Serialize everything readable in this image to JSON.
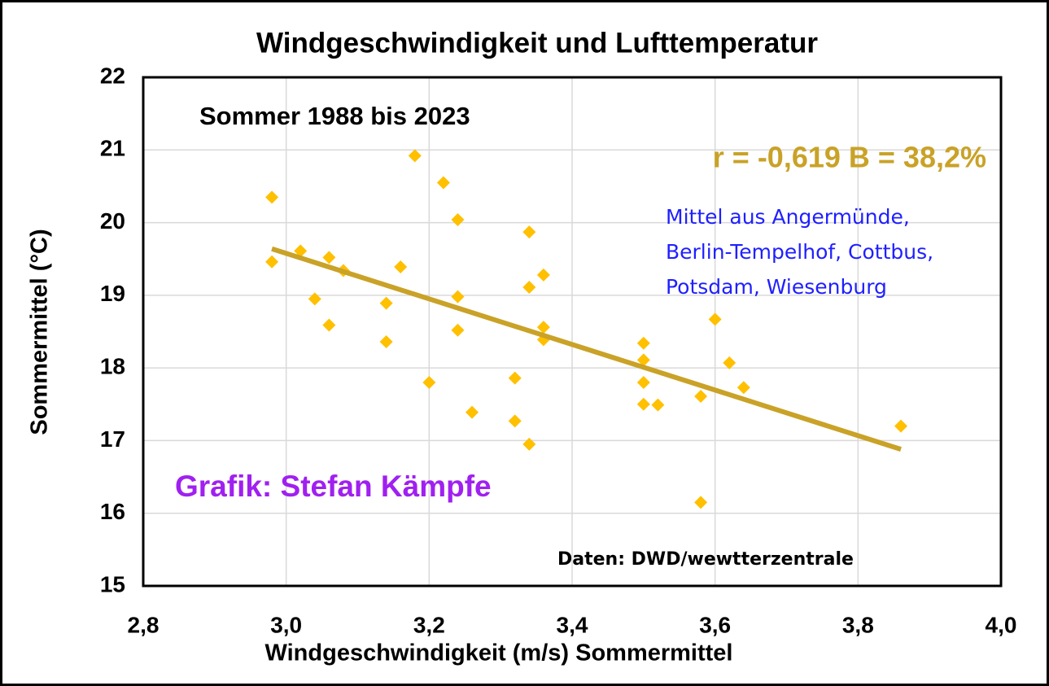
{
  "chart_data": {
    "type": "scatter",
    "title": "Windgeschwindigkeit und Lufttemperatur",
    "subtitle": "Sommer 1988 bis 2023",
    "x_label": "Windgeschwindigkeit (m/s) Sommermittel",
    "y_label": "Sommermittel (°C)",
    "annotations": {
      "stats": "r = -0,619 B = 38,2%",
      "stations": [
        "Mittel aus Angermünde,",
        "Berlin-Tempelhof, Cottbus,",
        "Potsdam, Wiesenburg"
      ],
      "credit": "Grafik: Stefan Kämpfe",
      "source": "Daten: DWD/wewtterzentrale"
    },
    "series": [
      {
        "color": "#ffc000",
        "x": [
          2.98,
          2.98,
          3.02,
          3.04,
          3.06,
          3.06,
          3.08,
          3.14,
          3.14,
          3.16,
          3.18,
          3.2,
          3.22,
          3.24,
          3.24,
          3.24,
          3.26,
          3.32,
          3.32,
          3.34,
          3.34,
          3.34,
          3.36,
          3.36,
          3.36,
          3.5,
          3.5,
          3.5,
          3.5,
          3.52,
          3.58,
          3.58,
          3.6,
          3.62,
          3.64,
          3.86
        ],
        "values": [
          20.35,
          19.46,
          19.61,
          18.95,
          19.52,
          18.59,
          19.34,
          18.89,
          18.36,
          19.39,
          20.92,
          17.8,
          20.55,
          20.04,
          18.98,
          18.52,
          17.39,
          17.86,
          17.27,
          19.87,
          19.11,
          16.95,
          19.28,
          18.56,
          18.39,
          18.34,
          18.11,
          17.8,
          17.5,
          17.49,
          17.61,
          16.15,
          18.67,
          18.07,
          17.73,
          17.2
        ]
      }
    ],
    "trendline": {
      "color": "#c9a227",
      "x": [
        2.98,
        3.86
      ],
      "values": [
        19.64,
        16.88
      ]
    },
    "xlim": [
      2.8,
      4.0
    ],
    "xticks": [
      {
        "value": 2.8,
        "label": "2,8"
      },
      {
        "value": 3.0,
        "label": "3,0"
      },
      {
        "value": 3.2,
        "label": "3,2"
      },
      {
        "value": 3.4,
        "label": "3,4"
      },
      {
        "value": 3.6,
        "label": "3,6"
      },
      {
        "value": 3.8,
        "label": "3,8"
      },
      {
        "value": 4.0,
        "label": "4,0"
      }
    ],
    "ylim": [
      15,
      22
    ],
    "yticks": [
      15,
      16,
      17,
      18,
      19,
      20,
      21,
      22
    ],
    "grid": true
  }
}
